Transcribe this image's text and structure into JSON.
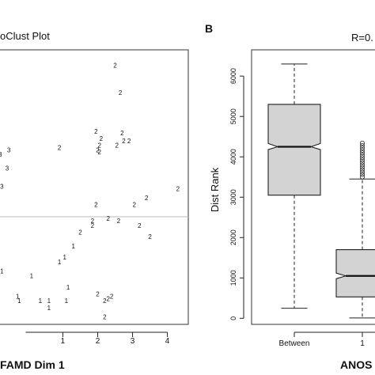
{
  "panel_a": {
    "title": "oClust Plot",
    "xlabel": "FAMD Dim 1"
  },
  "panel_b": {
    "label": "B",
    "stat": "R=0.",
    "ylabel": "Dist Rank",
    "xlabel": "ANOS"
  },
  "chart_data": [
    {
      "type": "scatter",
      "title": "oClust Plot",
      "xlabel": "FAMD Dim 1",
      "ylabel": "",
      "xlim": [
        -0.85,
        4.6
      ],
      "ylim": [
        -2.45,
        3.55
      ],
      "x_ticks": [
        1,
        2,
        3,
        4
      ],
      "reference_line_y": 0,
      "grid": false,
      "points": [
        {
          "x": 2.5,
          "y": 3.2,
          "label": "2"
        },
        {
          "x": 2.65,
          "y": 2.6,
          "label": "2"
        },
        {
          "x": 1.95,
          "y": 1.75,
          "label": "2"
        },
        {
          "x": 2.7,
          "y": 1.72,
          "label": "2"
        },
        {
          "x": 2.1,
          "y": 1.6,
          "label": "2"
        },
        {
          "x": 2.75,
          "y": 1.55,
          "label": "2"
        },
        {
          "x": 2.9,
          "y": 1.55,
          "label": "2"
        },
        {
          "x": 2.05,
          "y": 1.45,
          "label": "2"
        },
        {
          "x": 2.0,
          "y": 1.35,
          "label": "2"
        },
        {
          "x": 2.55,
          "y": 1.45,
          "label": "2"
        },
        {
          "x": 0.9,
          "y": 1.4,
          "label": "2"
        },
        {
          "x": 2.05,
          "y": 1.3,
          "label": "2"
        },
        {
          "x": -0.8,
          "y": 1.25,
          "label": "3"
        },
        {
          "x": -0.55,
          "y": 1.35,
          "label": "3"
        },
        {
          "x": -0.6,
          "y": 0.95,
          "label": "3"
        },
        {
          "x": -0.75,
          "y": 0.55,
          "label": "3"
        },
        {
          "x": 4.3,
          "y": 0.5,
          "label": "2"
        },
        {
          "x": 3.4,
          "y": 0.3,
          "label": "2"
        },
        {
          "x": 3.05,
          "y": 0.15,
          "label": "2"
        },
        {
          "x": 1.95,
          "y": 0.15,
          "label": "2"
        },
        {
          "x": 2.3,
          "y": -0.15,
          "label": "2"
        },
        {
          "x": 1.85,
          "y": -0.2,
          "label": "2"
        },
        {
          "x": 2.6,
          "y": -0.2,
          "label": "2"
        },
        {
          "x": 1.85,
          "y": -0.3,
          "label": "2"
        },
        {
          "x": 3.2,
          "y": -0.3,
          "label": "2"
        },
        {
          "x": 1.5,
          "y": -0.45,
          "label": "2"
        },
        {
          "x": 3.5,
          "y": -0.55,
          "label": "2"
        },
        {
          "x": 1.3,
          "y": -0.75,
          "label": "1"
        },
        {
          "x": 1.05,
          "y": -1.0,
          "label": "1"
        },
        {
          "x": 0.9,
          "y": -1.1,
          "label": "1"
        },
        {
          "x": -0.75,
          "y": -1.3,
          "label": "1"
        },
        {
          "x": 0.1,
          "y": -1.4,
          "label": "1"
        },
        {
          "x": 1.15,
          "y": -1.65,
          "label": "1"
        },
        {
          "x": 2.0,
          "y": -1.8,
          "label": "2"
        },
        {
          "x": 2.4,
          "y": -1.85,
          "label": "2"
        },
        {
          "x": 2.3,
          "y": -1.9,
          "label": "2"
        },
        {
          "x": -0.3,
          "y": -1.85,
          "label": "1"
        },
        {
          "x": -0.25,
          "y": -1.95,
          "label": "1"
        },
        {
          "x": 0.35,
          "y": -1.95,
          "label": "1"
        },
        {
          "x": 0.6,
          "y": -1.95,
          "label": "1"
        },
        {
          "x": 1.1,
          "y": -1.95,
          "label": "1"
        },
        {
          "x": 2.2,
          "y": -1.95,
          "label": "2"
        },
        {
          "x": 0.6,
          "y": -2.1,
          "label": "1"
        },
        {
          "x": 2.2,
          "y": -2.3,
          "label": "2"
        }
      ]
    },
    {
      "type": "box",
      "ylabel": "Dist Rank",
      "xlabel": "ANOS",
      "stat_text": "R=0.",
      "ylim": [
        -150,
        6650
      ],
      "y_ticks": [
        0,
        1000,
        2000,
        3000,
        4000,
        5000,
        6000
      ],
      "notched": true,
      "grid": false,
      "groups": [
        {
          "name": "Between",
          "min": 250,
          "q1": 3050,
          "median": 4250,
          "q3": 5300,
          "max": 6300,
          "notch_low": 4180,
          "notch_high": 4330,
          "outliers": []
        },
        {
          "name": "1",
          "min": 10,
          "q1": 530,
          "median": 1050,
          "q3": 1700,
          "max": 3450,
          "notch_low": 980,
          "notch_high": 1120,
          "outliers": [
            3500,
            3560,
            3620,
            3680,
            3740,
            3800,
            3860,
            3920,
            3980,
            4040,
            4100,
            4160,
            4220,
            4280,
            4340
          ]
        }
      ]
    }
  ]
}
